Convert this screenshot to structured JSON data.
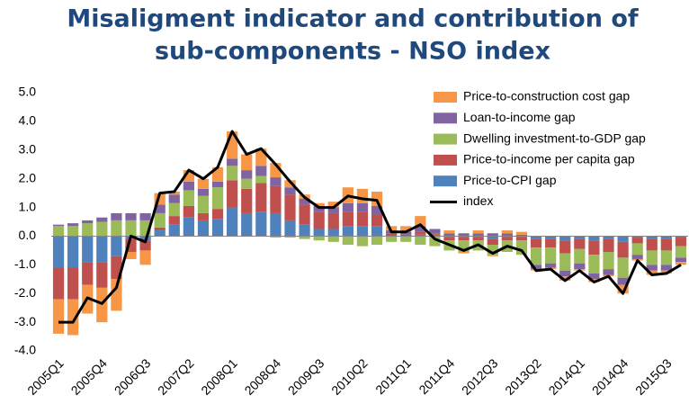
{
  "chart_data": {
    "type": "bar",
    "stacked": true,
    "title": [
      "Misaligment indicator and contribution of",
      "sub-components - NSO index"
    ],
    "categories": [
      "2005Q1",
      null,
      null,
      "2005Q4",
      null,
      null,
      "2006Q3",
      null,
      null,
      "2007Q2",
      null,
      null,
      "2008Q1",
      null,
      null,
      "2008Q4",
      null,
      null,
      "2009Q3",
      null,
      null,
      "2010Q2",
      null,
      null,
      "2011Q1",
      null,
      null,
      "2011Q4",
      null,
      null,
      "2012Q3",
      null,
      null,
      "2013Q2",
      null,
      null,
      "2014Q1",
      null,
      null,
      "2014Q4",
      null,
      null,
      "2015Q3",
      null
    ],
    "series": [
      {
        "name": "Price-to-CPI gap",
        "color": "#4f81bd",
        "values": [
          -1.1,
          -1.1,
          -0.9,
          -0.9,
          -0.7,
          -0.1,
          -0.15,
          0.2,
          0.4,
          0.65,
          0.55,
          0.6,
          1.0,
          0.8,
          0.85,
          0.8,
          0.55,
          0.4,
          0.25,
          0.25,
          0.35,
          0.35,
          0.35,
          0.0,
          0.0,
          0.05,
          0.05,
          -0.05,
          -0.05,
          -0.05,
          -0.1,
          -0.05,
          -0.05,
          -0.1,
          -0.1,
          -0.15,
          -0.1,
          -0.15,
          -0.1,
          -0.2,
          -0.05,
          -0.1,
          -0.1,
          -0.05
        ]
      },
      {
        "name": "Price-to-income per capita gap",
        "color": "#c0504d",
        "values": [
          -1.1,
          -1.1,
          -0.8,
          -0.9,
          -0.8,
          -0.45,
          -0.35,
          0.1,
          0.3,
          0.4,
          0.25,
          0.35,
          0.95,
          0.85,
          1.0,
          0.95,
          0.9,
          0.7,
          0.6,
          0.55,
          0.5,
          0.5,
          0.4,
          0.1,
          0.05,
          0.1,
          0.05,
          -0.1,
          -0.1,
          -0.1,
          -0.2,
          -0.1,
          -0.1,
          -0.3,
          -0.3,
          -0.45,
          -0.35,
          -0.5,
          -0.45,
          -0.55,
          -0.2,
          -0.4,
          -0.4,
          -0.3
        ]
      },
      {
        "name": "Dwelling investment-to-GDP gap",
        "color": "#9bbb59",
        "values": [
          0.35,
          0.35,
          0.45,
          0.5,
          0.55,
          0.55,
          0.55,
          0.5,
          0.45,
          0.55,
          0.6,
          0.75,
          0.5,
          0.35,
          0.25,
          -0.05,
          -0.05,
          -0.1,
          -0.15,
          -0.2,
          -0.3,
          -0.35,
          -0.3,
          -0.2,
          -0.2,
          -0.3,
          -0.35,
          -0.35,
          -0.4,
          -0.35,
          -0.35,
          -0.4,
          -0.5,
          -0.6,
          -0.55,
          -0.6,
          -0.5,
          -0.65,
          -0.6,
          -0.7,
          -0.4,
          -0.5,
          -0.5,
          -0.4
        ]
      },
      {
        "name": "Loan-to-income gap",
        "color": "#8064a2",
        "values": [
          0.05,
          0.1,
          0.1,
          0.15,
          0.25,
          0.25,
          0.25,
          0.3,
          0.3,
          0.3,
          0.25,
          0.2,
          0.25,
          0.3,
          0.35,
          0.3,
          0.25,
          0.2,
          0.2,
          0.2,
          0.3,
          0.3,
          0.3,
          0.1,
          0.1,
          0.2,
          0.15,
          0.1,
          0.1,
          0.1,
          0.1,
          0.1,
          0.05,
          -0.15,
          -0.15,
          -0.2,
          -0.2,
          -0.2,
          -0.2,
          -0.25,
          -0.15,
          -0.2,
          -0.2,
          -0.15
        ]
      },
      {
        "name": "Price-to-construction cost gap",
        "color": "#f79646",
        "values": [
          -1.2,
          -1.25,
          -1.0,
          -1.2,
          -1.1,
          -0.25,
          -0.5,
          0.4,
          0.1,
          0.4,
          0.35,
          0.5,
          0.95,
          0.55,
          0.6,
          0.5,
          0.25,
          0.15,
          0.1,
          0.2,
          0.55,
          0.5,
          0.5,
          0.15,
          0.2,
          0.35,
          0.0,
          0.1,
          -0.05,
          0.1,
          -0.05,
          0.1,
          0.1,
          -0.05,
          -0.05,
          -0.15,
          -0.05,
          -0.1,
          -0.05,
          -0.3,
          -0.05,
          -0.15,
          -0.1,
          -0.1
        ]
      },
      {
        "name": "index",
        "type": "line",
        "color": "#000000",
        "values": [
          -3.0,
          -3.0,
          -2.15,
          -2.35,
          -1.8,
          0.0,
          -0.2,
          1.5,
          1.55,
          2.3,
          2.0,
          2.4,
          3.65,
          2.85,
          3.05,
          2.5,
          1.9,
          1.35,
          1.0,
          1.0,
          1.4,
          1.3,
          1.25,
          0.15,
          0.15,
          0.4,
          -0.1,
          -0.3,
          -0.5,
          -0.3,
          -0.6,
          -0.35,
          -0.5,
          -1.2,
          -1.15,
          -1.55,
          -1.2,
          -1.6,
          -1.4,
          -2.0,
          -0.85,
          -1.35,
          -1.3,
          -1.0
        ]
      }
    ],
    "ylim": [
      -4,
      5
    ],
    "yticks": [
      {
        "value": -4,
        "label": "-4.0"
      },
      {
        "value": -3,
        "label": "-3.0"
      },
      {
        "value": -2,
        "label": "-2.0"
      },
      {
        "value": -1,
        "label": "-1.0"
      },
      {
        "value": 0,
        "label": "0.0"
      },
      {
        "value": 1,
        "label": "1.0"
      },
      {
        "value": 2,
        "label": "2.0"
      },
      {
        "value": 3,
        "label": "3.0"
      },
      {
        "value": 4,
        "label": "4.0"
      },
      {
        "value": 5,
        "label": "5.0"
      }
    ],
    "grid": false,
    "legend": "upper right"
  }
}
